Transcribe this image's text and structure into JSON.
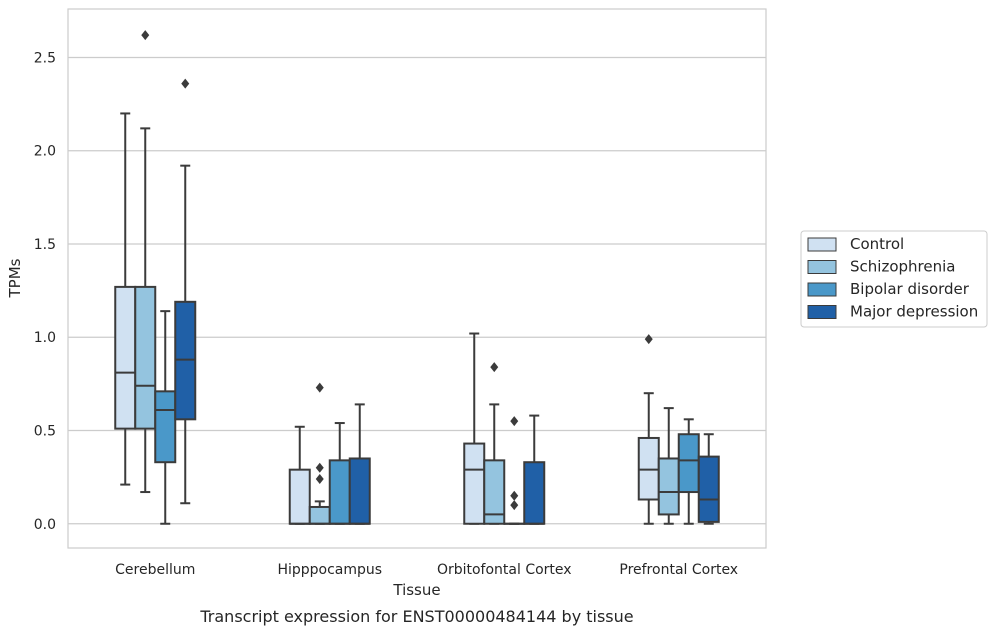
{
  "caption": "Transcript expression for ENST00000484144 by tissue",
  "chart_data": {
    "type": "box",
    "xlabel": "Tissue",
    "ylabel": "TPMs",
    "ylim": [
      -0.13,
      2.76
    ],
    "yticks": [
      0.0,
      0.5,
      1.0,
      1.5,
      2.0,
      2.5
    ],
    "ytick_labels": [
      "0.0",
      "0.5",
      "1.0",
      "1.5",
      "2.0",
      "2.5"
    ],
    "grid": "horizontal",
    "legend_position": "right, outside plot",
    "categories": [
      "Cerebellum",
      "Hipppocampus",
      "Orbitofontal Cortex",
      "Prefrontal Cortex"
    ],
    "series": [
      {
        "name": "Control",
        "color": "#d0e1f2",
        "boxes": [
          {
            "whislo": 0.21,
            "q1": 0.51,
            "med": 0.81,
            "q3": 1.27,
            "whishi": 2.2,
            "fliers": []
          },
          {
            "whislo": 0.0,
            "q1": 0.0,
            "med": 0.0,
            "q3": 0.29,
            "whishi": 0.52,
            "fliers": []
          },
          {
            "whislo": 0.0,
            "q1": 0.0,
            "med": 0.29,
            "q3": 0.43,
            "whishi": 1.02,
            "fliers": []
          },
          {
            "whislo": 0.0,
            "q1": 0.13,
            "med": 0.29,
            "q3": 0.46,
            "whishi": 0.7,
            "fliers": [
              0.99
            ]
          }
        ]
      },
      {
        "name": "Schizophrenia",
        "color": "#94c4df",
        "boxes": [
          {
            "whislo": 0.17,
            "q1": 0.51,
            "med": 0.74,
            "q3": 1.27,
            "whishi": 2.12,
            "fliers": [
              2.62
            ]
          },
          {
            "whislo": 0.0,
            "q1": 0.0,
            "med": 0.0,
            "q3": 0.09,
            "whishi": 0.12,
            "fliers": [
              0.24,
              0.3,
              0.73
            ]
          },
          {
            "whislo": 0.0,
            "q1": 0.0,
            "med": 0.05,
            "q3": 0.34,
            "whishi": 0.64,
            "fliers": [
              0.84
            ]
          },
          {
            "whislo": 0.0,
            "q1": 0.05,
            "med": 0.17,
            "q3": 0.35,
            "whishi": 0.62,
            "fliers": []
          }
        ]
      },
      {
        "name": "Bipolar disorder",
        "color": "#4a98c9",
        "boxes": [
          {
            "whislo": 0.0,
            "q1": 0.33,
            "med": 0.61,
            "q3": 0.71,
            "whishi": 1.14,
            "fliers": []
          },
          {
            "whislo": 0.0,
            "q1": 0.0,
            "med": 0.0,
            "q3": 0.34,
            "whishi": 0.54,
            "fliers": []
          },
          {
            "whislo": 0.0,
            "q1": 0.0,
            "med": 0.0,
            "q3": 0.0,
            "whishi": 0.0,
            "fliers": [
              0.1,
              0.15,
              0.55
            ]
          },
          {
            "whislo": 0.0,
            "q1": 0.17,
            "med": 0.34,
            "q3": 0.48,
            "whishi": 0.56,
            "fliers": []
          }
        ]
      },
      {
        "name": "Major depression",
        "color": "#2060a7",
        "boxes": [
          {
            "whislo": 0.11,
            "q1": 0.56,
            "med": 0.88,
            "q3": 1.19,
            "whishi": 1.92,
            "fliers": [
              2.36
            ]
          },
          {
            "whislo": 0.0,
            "q1": 0.0,
            "med": 0.0,
            "q3": 0.35,
            "whishi": 0.64,
            "fliers": []
          },
          {
            "whislo": 0.0,
            "q1": 0.0,
            "med": 0.0,
            "q3": 0.33,
            "whishi": 0.58,
            "fliers": []
          },
          {
            "whislo": 0.0,
            "q1": 0.01,
            "med": 0.13,
            "q3": 0.36,
            "whishi": 0.48,
            "fliers": []
          }
        ]
      }
    ]
  }
}
